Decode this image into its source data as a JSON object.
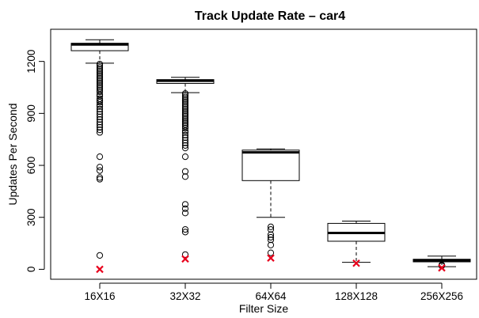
{
  "chart_data": {
    "type": "boxplot",
    "title": "Track Update Rate – car4",
    "xlabel": "Filter Size",
    "ylabel": "Updates Per Second",
    "ylim": [
      -30,
      1340
    ],
    "yticks": [
      0,
      300,
      600,
      900,
      1200
    ],
    "categories": [
      "16X16",
      "32X32",
      "64X64",
      "128X128",
      "256X256"
    ],
    "boxes": [
      {
        "name": "16X16",
        "whisker_low": 1190,
        "q1": 1262,
        "median": 1298,
        "q3": 1305,
        "whisker_high": 1325,
        "outliers": [
          1185,
          1175,
          1165,
          1155,
          1145,
          1135,
          1125,
          1115,
          1105,
          1095,
          1085,
          1075,
          1065,
          1055,
          1045,
          1035,
          1025,
          1010,
          1000,
          985,
          975,
          965,
          950,
          940,
          925,
          910,
          895,
          880,
          865,
          850,
          835,
          820,
          805,
          790,
          650,
          590,
          570,
          530,
          520,
          80
        ],
        "mean": 0
      },
      {
        "name": "32X32",
        "whisker_low": 1020,
        "q1": 1073,
        "median": 1088,
        "q3": 1095,
        "whisker_high": 1108,
        "outliers": [
          1015,
          1005,
          995,
          985,
          975,
          965,
          955,
          945,
          935,
          925,
          915,
          905,
          895,
          885,
          875,
          865,
          855,
          845,
          835,
          825,
          815,
          800,
          790,
          775,
          760,
          745,
          730,
          715,
          700,
          650,
          565,
          535,
          375,
          350,
          325,
          230,
          215,
          85
        ],
        "mean": 60
      },
      {
        "name": "64X64",
        "whisker_low": 300,
        "q1": 512,
        "median": 675,
        "q3": 688,
        "whisker_high": 695,
        "outliers": [
          245,
          230,
          200,
          185,
          170,
          140,
          95
        ],
        "mean": 65
      },
      {
        "name": "128X128",
        "whisker_low": 40,
        "q1": 162,
        "median": 210,
        "q3": 265,
        "whisker_high": 278,
        "outliers": [],
        "mean": 35
      },
      {
        "name": "256X256",
        "whisker_low": 15,
        "q1": 43,
        "median": 52,
        "q3": 58,
        "whisker_high": 76,
        "outliers": [
          25,
          20
        ],
        "mean": 8
      }
    ],
    "mean_marker": "red cross",
    "colors": {
      "box": "#000000",
      "mean_marker": "#e8001c"
    },
    "grid": false,
    "legend": "none"
  }
}
